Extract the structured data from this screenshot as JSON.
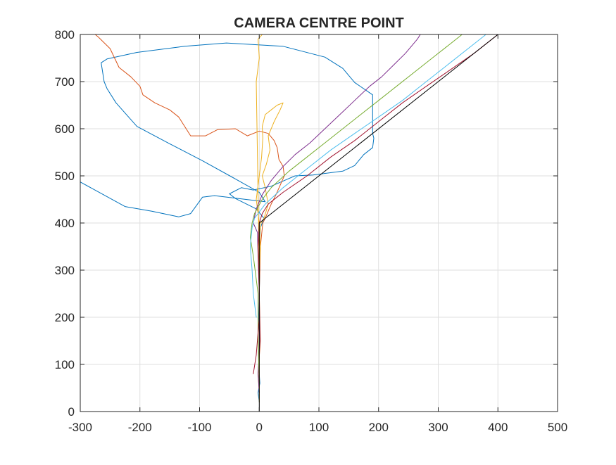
{
  "chart_data": {
    "type": "line",
    "title": "CAMERA CENTRE POINT",
    "xlabel": "",
    "ylabel": "",
    "xlim": [
      -300,
      500
    ],
    "ylim": [
      0,
      800
    ],
    "xticks": [
      -300,
      -200,
      -100,
      0,
      100,
      200,
      300,
      400,
      500
    ],
    "yticks": [
      0,
      100,
      200,
      300,
      400,
      500,
      600,
      700,
      800
    ],
    "grid": true,
    "legend": "none",
    "series": [
      {
        "color": "#0072BD",
        "points": [
          [
            0,
            20
          ],
          [
            -2,
            40
          ],
          [
            1,
            60
          ],
          [
            -1,
            100
          ],
          [
            1,
            150
          ],
          [
            -1,
            200
          ],
          [
            0,
            250
          ],
          [
            1,
            300
          ],
          [
            0,
            350
          ],
          [
            2,
            390
          ],
          [
            5,
            400
          ],
          [
            8,
            410
          ],
          [
            -5,
            430
          ],
          [
            -40,
            452
          ],
          [
            -50,
            462
          ],
          [
            -30,
            475
          ],
          [
            -10,
            470
          ],
          [
            20,
            478
          ],
          [
            60,
            500
          ],
          [
            90,
            502
          ],
          [
            140,
            510
          ],
          [
            160,
            522
          ],
          [
            175,
            545
          ],
          [
            190,
            560
          ],
          [
            192,
            580
          ],
          [
            190,
            590
          ],
          [
            190,
            640
          ],
          [
            190,
            672
          ],
          [
            160,
            698
          ],
          [
            140,
            728
          ],
          [
            110,
            752
          ],
          [
            40,
            775
          ],
          [
            -55,
            782
          ],
          [
            -125,
            775
          ],
          [
            -205,
            762
          ],
          [
            -255,
            748
          ],
          [
            -265,
            740
          ],
          [
            -260,
            700
          ],
          [
            -255,
            685
          ],
          [
            -240,
            655
          ],
          [
            -205,
            605
          ],
          [
            -150,
            568
          ],
          [
            -95,
            532
          ],
          [
            -45,
            497
          ],
          [
            0,
            465
          ],
          [
            10,
            445
          ],
          [
            -75,
            458
          ],
          [
            -95,
            455
          ],
          [
            -115,
            420
          ],
          [
            -135,
            413
          ],
          [
            -180,
            425
          ],
          [
            -225,
            435
          ],
          [
            -300,
            487
          ]
        ]
      },
      {
        "color": "#D95319",
        "points": [
          [
            0,
            40
          ],
          [
            -2,
            80
          ],
          [
            2,
            150
          ],
          [
            0,
            250
          ],
          [
            2,
            350
          ],
          [
            6,
            400
          ],
          [
            10,
            410
          ],
          [
            20,
            440
          ],
          [
            28,
            460
          ],
          [
            35,
            480
          ],
          [
            42,
            500
          ],
          [
            40,
            520
          ],
          [
            33,
            535
          ],
          [
            30,
            560
          ],
          [
            25,
            575
          ],
          [
            15,
            590
          ],
          [
            0,
            595
          ],
          [
            -20,
            585
          ],
          [
            -40,
            600
          ],
          [
            -70,
            598
          ],
          [
            -90,
            585
          ],
          [
            -115,
            585
          ],
          [
            -135,
            625
          ],
          [
            -150,
            640
          ],
          [
            -175,
            655
          ],
          [
            -195,
            672
          ],
          [
            -200,
            690
          ],
          [
            -215,
            710
          ],
          [
            -235,
            730
          ],
          [
            -250,
            770
          ],
          [
            -270,
            795
          ],
          [
            -275,
            800
          ]
        ]
      },
      {
        "color": "#EDB120",
        "points": [
          [
            0,
            20
          ],
          [
            0,
            100
          ],
          [
            0,
            200
          ],
          [
            0,
            300
          ],
          [
            1,
            380
          ],
          [
            3,
            400
          ],
          [
            8,
            410
          ],
          [
            15,
            440
          ],
          [
            10,
            475
          ],
          [
            5,
            500
          ],
          [
            12,
            525
          ],
          [
            18,
            555
          ],
          [
            15,
            585
          ],
          [
            25,
            615
          ],
          [
            35,
            640
          ],
          [
            40,
            655
          ],
          [
            30,
            650
          ],
          [
            20,
            640
          ],
          [
            10,
            630
          ],
          [
            5,
            605
          ],
          [
            6,
            580
          ],
          [
            4,
            540
          ],
          [
            0,
            500
          ],
          [
            -5,
            450
          ],
          [
            0,
            400
          ],
          [
            2,
            350
          ],
          [
            0,
            300
          ],
          [
            -5,
            700
          ],
          [
            0,
            750
          ],
          [
            -2,
            790
          ],
          [
            5,
            800
          ]
        ]
      },
      {
        "color": "#7E2F8E",
        "points": [
          [
            0,
            40
          ],
          [
            -2,
            80
          ],
          [
            1,
            150
          ],
          [
            0,
            250
          ],
          [
            -2,
            330
          ],
          [
            -3,
            380
          ],
          [
            -10,
            400
          ],
          [
            -5,
            430
          ],
          [
            5,
            460
          ],
          [
            20,
            490
          ],
          [
            40,
            520
          ],
          [
            60,
            545
          ],
          [
            85,
            570
          ],
          [
            110,
            600
          ],
          [
            135,
            630
          ],
          [
            160,
            660
          ],
          [
            185,
            690
          ],
          [
            205,
            710
          ],
          [
            225,
            735
          ],
          [
            245,
            760
          ],
          [
            265,
            790
          ],
          [
            270,
            800
          ]
        ]
      },
      {
        "color": "#77AC30",
        "points": [
          [
            0,
            60
          ],
          [
            -2,
            150
          ],
          [
            -2,
            250
          ],
          [
            -10,
            330
          ],
          [
            -15,
            370
          ],
          [
            -12,
            400
          ],
          [
            -8,
            420
          ],
          [
            5,
            450
          ],
          [
            20,
            475
          ],
          [
            50,
            510
          ],
          [
            80,
            540
          ],
          [
            110,
            570
          ],
          [
            140,
            600
          ],
          [
            170,
            630
          ],
          [
            200,
            660
          ],
          [
            230,
            690
          ],
          [
            260,
            720
          ],
          [
            290,
            750
          ],
          [
            315,
            775
          ],
          [
            340,
            800
          ]
        ]
      },
      {
        "color": "#4DBEEE",
        "points": [
          [
            -5,
            200
          ],
          [
            -10,
            250
          ],
          [
            -12,
            300
          ],
          [
            -15,
            350
          ],
          [
            -12,
            390
          ],
          [
            -8,
            410
          ],
          [
            10,
            440
          ],
          [
            40,
            475
          ],
          [
            80,
            515
          ],
          [
            120,
            555
          ],
          [
            160,
            590
          ],
          [
            200,
            625
          ],
          [
            240,
            660
          ],
          [
            280,
            700
          ],
          [
            320,
            740
          ],
          [
            360,
            780
          ],
          [
            380,
            800
          ]
        ]
      },
      {
        "color": "#A2142F",
        "points": [
          [
            -10,
            80
          ],
          [
            -5,
            120
          ],
          [
            0,
            200
          ],
          [
            0,
            250
          ],
          [
            -2,
            350
          ],
          [
            0,
            400
          ],
          [
            5,
            420
          ],
          [
            15,
            440
          ],
          [
            40,
            465
          ],
          [
            80,
            500
          ],
          [
            120,
            540
          ],
          [
            160,
            575
          ],
          [
            200,
            615
          ],
          [
            240,
            655
          ],
          [
            280,
            690
          ],
          [
            320,
            725
          ],
          [
            360,
            760
          ],
          [
            400,
            800
          ]
        ]
      },
      {
        "color": "#000000",
        "width": 1.6,
        "points": [
          [
            0,
            0
          ],
          [
            0,
            400
          ],
          [
            400,
            800
          ]
        ]
      }
    ]
  }
}
